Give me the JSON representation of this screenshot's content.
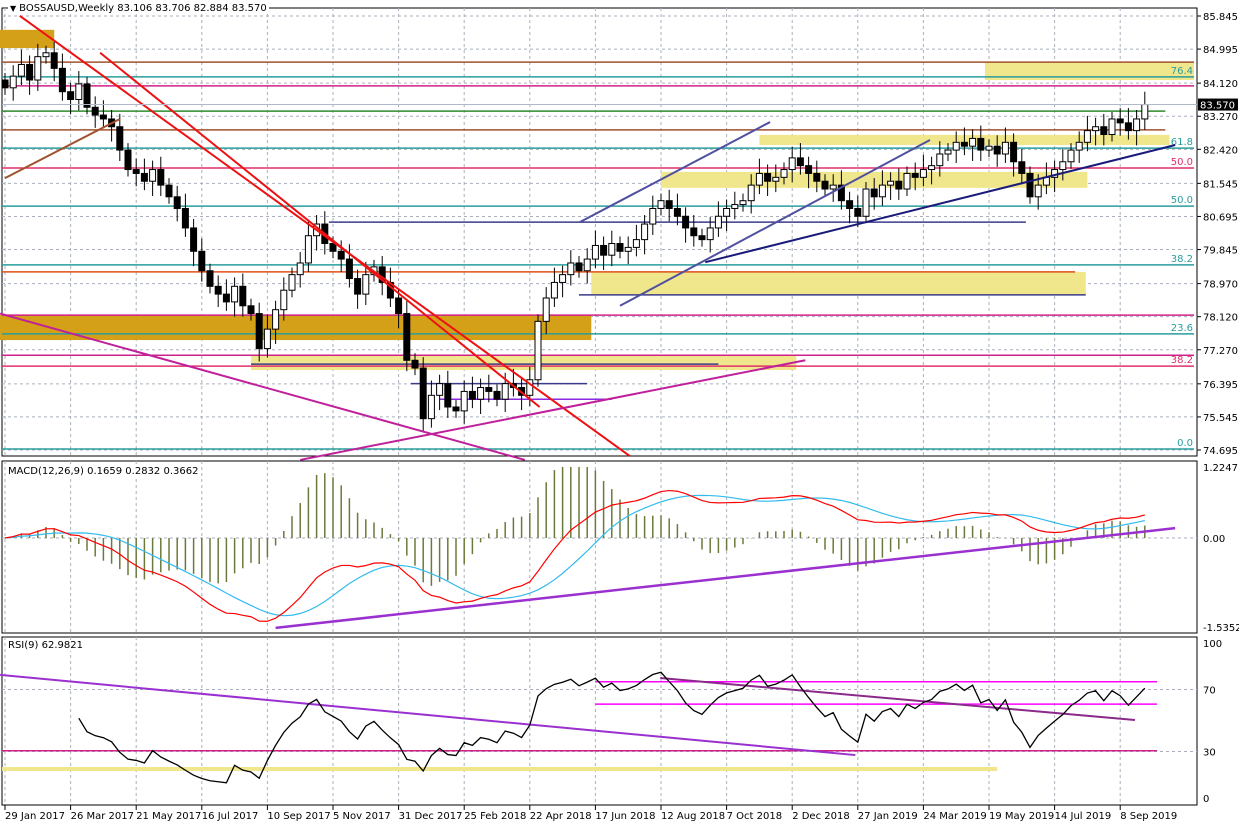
{
  "header": {
    "symbol": "BOSSAUSD,Weekly",
    "ohlc": "83.106 83.706 82.884 83.570"
  },
  "macd_label": "MACD(12,26,9) 0.1659 0.2832 0.3662",
  "rsi_label": "RSI(9) 62.9821",
  "colors": {
    "bull": "#ffffff",
    "bear": "#000000",
    "grid": "#a9b0bc",
    "gold": "#d4a017",
    "yellow": "#f0e68c",
    "macd_hist": "#6b7a3a",
    "macd_main": "#ff0000",
    "macd_signal": "#33bbee",
    "rsi": "#000000"
  },
  "chart_data": [
    {
      "type": "candlestick",
      "title": "BOSSAUSD,Weekly",
      "ylim": [
        74.695,
        85.845
      ],
      "yticks": [
        "85.845",
        "84.995",
        "84.120",
        "83.270",
        "82.420",
        "81.545",
        "80.695",
        "79.845",
        "78.970",
        "78.120",
        "77.270",
        "76.395",
        "75.545",
        "74.695"
      ],
      "current_price": "83.570",
      "xticks": [
        {
          "week": 0,
          "label": "29 Jan 2017"
        },
        {
          "week": 8,
          "label": "26 Mar 2017"
        },
        {
          "week": 16,
          "label": "21 May 2017"
        },
        {
          "week": 24,
          "label": "16 Jul 2017"
        },
        {
          "week": 32,
          "label": "10 Sep 2017"
        },
        {
          "week": 40,
          "label": "5 Nov 2017"
        },
        {
          "week": 48,
          "label": "31 Dec 2017"
        },
        {
          "week": 56,
          "label": "25 Feb 2018"
        },
        {
          "week": 64,
          "label": "22 Apr 2018"
        },
        {
          "week": 72,
          "label": "17 Jun 2018"
        },
        {
          "week": 80,
          "label": "12 Aug 2018"
        },
        {
          "week": 88,
          "label": "7 Oct 2018"
        },
        {
          "week": 96,
          "label": "2 Dec 2018"
        },
        {
          "week": 104,
          "label": "27 Jan 2019"
        },
        {
          "week": 112,
          "label": "24 Mar 2019"
        },
        {
          "week": 120,
          "label": "19 May 2019"
        },
        {
          "week": 128,
          "label": "14 Jul 2019"
        },
        {
          "week": 136,
          "label": "8 Sep 2019"
        }
      ],
      "close": [
        84.0,
        84.3,
        84.6,
        84.2,
        84.8,
        84.9,
        84.5,
        83.9,
        83.7,
        84.1,
        83.5,
        83.3,
        83.2,
        83.0,
        82.4,
        81.9,
        81.8,
        81.6,
        81.9,
        81.5,
        81.2,
        80.9,
        80.4,
        79.8,
        79.3,
        78.9,
        78.7,
        78.5,
        78.9,
        78.4,
        78.2,
        77.3,
        77.8,
        78.3,
        78.8,
        79.2,
        79.5,
        80.2,
        80.5,
        80.0,
        79.8,
        79.6,
        79.1,
        78.7,
        79.2,
        79.4,
        79.0,
        78.6,
        78.2,
        77.0,
        76.8,
        75.5,
        76.1,
        76.4,
        75.8,
        75.7,
        76.2,
        76.0,
        76.3,
        76.2,
        76.0,
        76.4,
        76.3,
        76.1,
        76.5,
        78.0,
        78.6,
        79.0,
        79.2,
        79.5,
        79.3,
        79.6,
        79.95,
        79.7,
        80.0,
        79.8,
        79.9,
        80.1,
        80.5,
        80.9,
        81.1,
        80.9,
        80.7,
        80.4,
        80.2,
        80.1,
        80.4,
        80.7,
        80.9,
        81.0,
        81.1,
        81.5,
        81.8,
        81.6,
        81.7,
        81.9,
        82.2,
        82.0,
        81.8,
        81.6,
        81.4,
        81.5,
        81.1,
        80.9,
        80.7,
        81.4,
        81.2,
        81.5,
        81.6,
        81.4,
        81.8,
        81.7,
        81.9,
        82.0,
        82.3,
        82.4,
        82.6,
        82.5,
        82.7,
        82.4,
        82.5,
        82.3,
        82.6,
        82.1,
        81.8,
        81.2,
        81.5,
        81.7,
        81.9,
        82.1,
        82.4,
        82.6,
        82.9,
        83.0,
        82.8,
        83.2,
        83.1,
        82.9,
        83.2,
        83.57
      ],
      "zones": [
        {
          "w0": -1,
          "w1": 6,
          "p0": 85.02,
          "p1": 85.49,
          "color": "#d4a017"
        },
        {
          "w0": -1,
          "w1": 71.5,
          "p0": 77.52,
          "p1": 78.16,
          "color": "#d4a017"
        },
        {
          "w0": 119.5,
          "w1": 145,
          "p0": 84.2,
          "p1": 84.66,
          "color": "#f0e68c"
        },
        {
          "w0": 92,
          "w1": 142,
          "p0": 82.53,
          "p1": 82.79,
          "color": "#f0e68c"
        },
        {
          "w0": 80,
          "w1": 132,
          "p0": 81.43,
          "p1": 81.84,
          "color": "#f0e68c"
        },
        {
          "w0": 71.5,
          "w1": 131.8,
          "p0": 78.68,
          "p1": 79.27,
          "color": "#f0e68c"
        },
        {
          "w0": 30,
          "w1": 96.5,
          "p0": 76.75,
          "p1": 77.13,
          "color": "#f0e68c"
        }
      ],
      "levels": [
        {
          "price": 84.66,
          "w0": -1,
          "w1": 145,
          "color": "#a0522d",
          "label": ""
        },
        {
          "price": 84.28,
          "w0": -1,
          "w1": 145,
          "color": "#2a9d9d",
          "label": "76.4"
        },
        {
          "price": 84.05,
          "w0": -1,
          "w1": 145,
          "color": "#d0208a",
          "label": ""
        },
        {
          "price": 83.4,
          "w0": -1,
          "w1": 141.5,
          "color": "#2e8b2e",
          "label": ""
        },
        {
          "price": 82.92,
          "w0": -1,
          "w1": 141.5,
          "color": "#a0522d",
          "label": ""
        },
        {
          "price": 82.45,
          "w0": -1,
          "w1": 145,
          "color": "#2a9d9d",
          "label": "61.8"
        },
        {
          "price": 81.94,
          "w0": -1,
          "w1": 145,
          "color": "#e0306a",
          "label": "50.0"
        },
        {
          "price": 80.96,
          "w0": -1,
          "w1": 145,
          "color": "#2a9d9d",
          "label": "50.0"
        },
        {
          "price": 80.55,
          "w0": 39.5,
          "w1": 124.5,
          "color": "#3a3a8a",
          "label": ""
        },
        {
          "price": 79.45,
          "w0": -1,
          "w1": 145,
          "color": "#2a9d9d",
          "label": "38.2"
        },
        {
          "price": 79.27,
          "w0": -1,
          "w1": 130.5,
          "color": "#e0501a",
          "label": ""
        },
        {
          "price": 78.68,
          "w0": 70,
          "w1": 131.8,
          "color": "#3a3a8a",
          "label": ""
        },
        {
          "price": 78.16,
          "w0": -1,
          "w1": 145,
          "color": "#d0208a",
          "label": ""
        },
        {
          "price": 77.68,
          "w0": -1,
          "w1": 145,
          "color": "#2a9d9d",
          "label": "23.6"
        },
        {
          "price": 77.13,
          "w0": -1,
          "w1": 145,
          "color": "#d0208a",
          "label": ""
        },
        {
          "price": 76.85,
          "w0": -1,
          "w1": 145,
          "color": "#e0306a",
          "label": "38.2"
        },
        {
          "price": 76.9,
          "w0": 30,
          "w1": 87,
          "color": "#3a3a8a",
          "label": ""
        },
        {
          "price": 76.4,
          "w0": 49.5,
          "w1": 71,
          "color": "#3a3a8a",
          "label": ""
        },
        {
          "price": 76.0,
          "w0": 53,
          "w1": 74,
          "color": "#8a2be2",
          "label": ""
        },
        {
          "price": 74.72,
          "w0": -1,
          "w1": 145,
          "color": "#2a9d9d",
          "label": "0.0"
        }
      ],
      "trendlines": [
        {
          "w0": 1.8,
          "p0": 85.85,
          "w1": 76.2,
          "p1": 74.54,
          "color": "#ee1111"
        },
        {
          "w0": 11.6,
          "p0": 84.9,
          "w1": 65.2,
          "p1": 75.8,
          "color": "#ee1111"
        },
        {
          "w0": -0.6,
          "p0": 78.2,
          "w1": 63.4,
          "p1": 74.44,
          "color": "#c0209a"
        },
        {
          "w0": 36,
          "p0": 74.44,
          "w1": 97.6,
          "p1": 77.0,
          "color": "#c0209a"
        },
        {
          "w0": 70.1,
          "p0": 80.55,
          "w1": 93.3,
          "p1": 83.12,
          "color": "#5050a0"
        },
        {
          "w0": 75,
          "p0": 78.4,
          "w1": 112.8,
          "p1": 82.66,
          "color": "#5050a0"
        },
        {
          "w0": 85.4,
          "p0": 79.52,
          "w1": 142.7,
          "p1": 82.53,
          "color": "#1a1a7a"
        },
        {
          "w0": 0,
          "p0": 81.68,
          "w1": 14,
          "p1": 83.2,
          "color": "#a0522d"
        }
      ]
    },
    {
      "type": "line",
      "title": "MACD(12,26,9)",
      "ylim": [
        -1.5352,
        1.2247
      ],
      "yticks": [
        "1.2247",
        "0.00",
        "-1.5352"
      ],
      "values": {
        "main": 0.1659,
        "signal": 0.2832,
        "third": 0.3662
      },
      "trendlines": [
        {
          "w0": 33,
          "p0": -1.55,
          "w1": 142.7,
          "p1": 0.17,
          "color": "#9b30d0"
        }
      ]
    },
    {
      "type": "line",
      "title": "RSI(9)",
      "value": 62.9821,
      "ylim": [
        0,
        100
      ],
      "yticks": [
        "100",
        "70",
        "30",
        "0"
      ],
      "levels": [
        {
          "value": 75,
          "w0": 72,
          "w1": 140.5,
          "color": "#ff00ff"
        },
        {
          "value": 60.6,
          "w0": 72,
          "w1": 140.5,
          "color": "#ff00ff"
        },
        {
          "value": 30.5,
          "w0": -1,
          "w1": 140.5,
          "color": "#d0208a"
        }
      ],
      "zones": [
        {
          "w0": -1,
          "w1": 121,
          "v0": 17.4,
          "v1": 20,
          "color": "#f0e68c"
        }
      ],
      "trendlines": [
        {
          "w0": -0.6,
          "p0": 79.4,
          "w1": 103.7,
          "p1": 27.7,
          "color": "#9b30d0"
        },
        {
          "w0": 79.9,
          "p0": 77.4,
          "w1": 137.8,
          "p1": 50.3,
          "color": "#8a2a8a"
        }
      ]
    }
  ]
}
